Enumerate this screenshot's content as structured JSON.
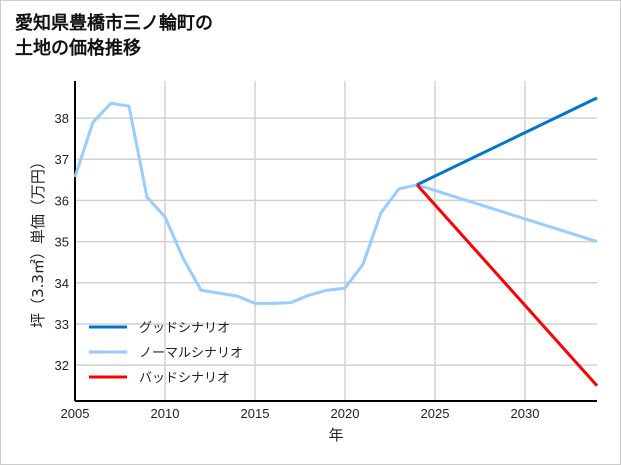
{
  "chart_data": {
    "type": "line",
    "title": [
      "愛知県豊橋市三ノ輪町の",
      "土地の価格推移"
    ],
    "xlabel": "年",
    "ylabel": "坪（3.3㎡）単価（万円）",
    "xlim": [
      2005,
      2034
    ],
    "ylim": [
      31.13,
      38.9
    ],
    "xticks": [
      2005,
      2010,
      2015,
      2020,
      2025,
      2030
    ],
    "yticks": [
      32,
      33,
      34,
      35,
      36,
      37,
      38
    ],
    "grid": true,
    "legend_position": "bottom-left",
    "series": [
      {
        "name": "グッドシナリオ",
        "color": "#0077cc",
        "x": [
          2024,
          2034
        ],
        "y": [
          36.38,
          38.49
        ]
      },
      {
        "name": "ノーマルシナリオ",
        "color": "#99ccff",
        "x": [
          2005,
          2006,
          2007,
          2008,
          2009,
          2010,
          2011,
          2012,
          2013,
          2014,
          2015,
          2016,
          2017,
          2018,
          2019,
          2020,
          2021,
          2022,
          2023,
          2024,
          2034
        ],
        "y": [
          36.57,
          37.9,
          38.36,
          38.29,
          36.08,
          35.6,
          34.6,
          33.82,
          33.75,
          33.68,
          33.5,
          33.5,
          33.52,
          33.7,
          33.82,
          33.87,
          34.45,
          35.7,
          36.28,
          36.38,
          35.0
        ]
      },
      {
        "name": "バッドシナリオ",
        "color": "#ff0000",
        "x": [
          2024,
          2034
        ],
        "y": [
          36.38,
          31.5
        ]
      }
    ]
  }
}
